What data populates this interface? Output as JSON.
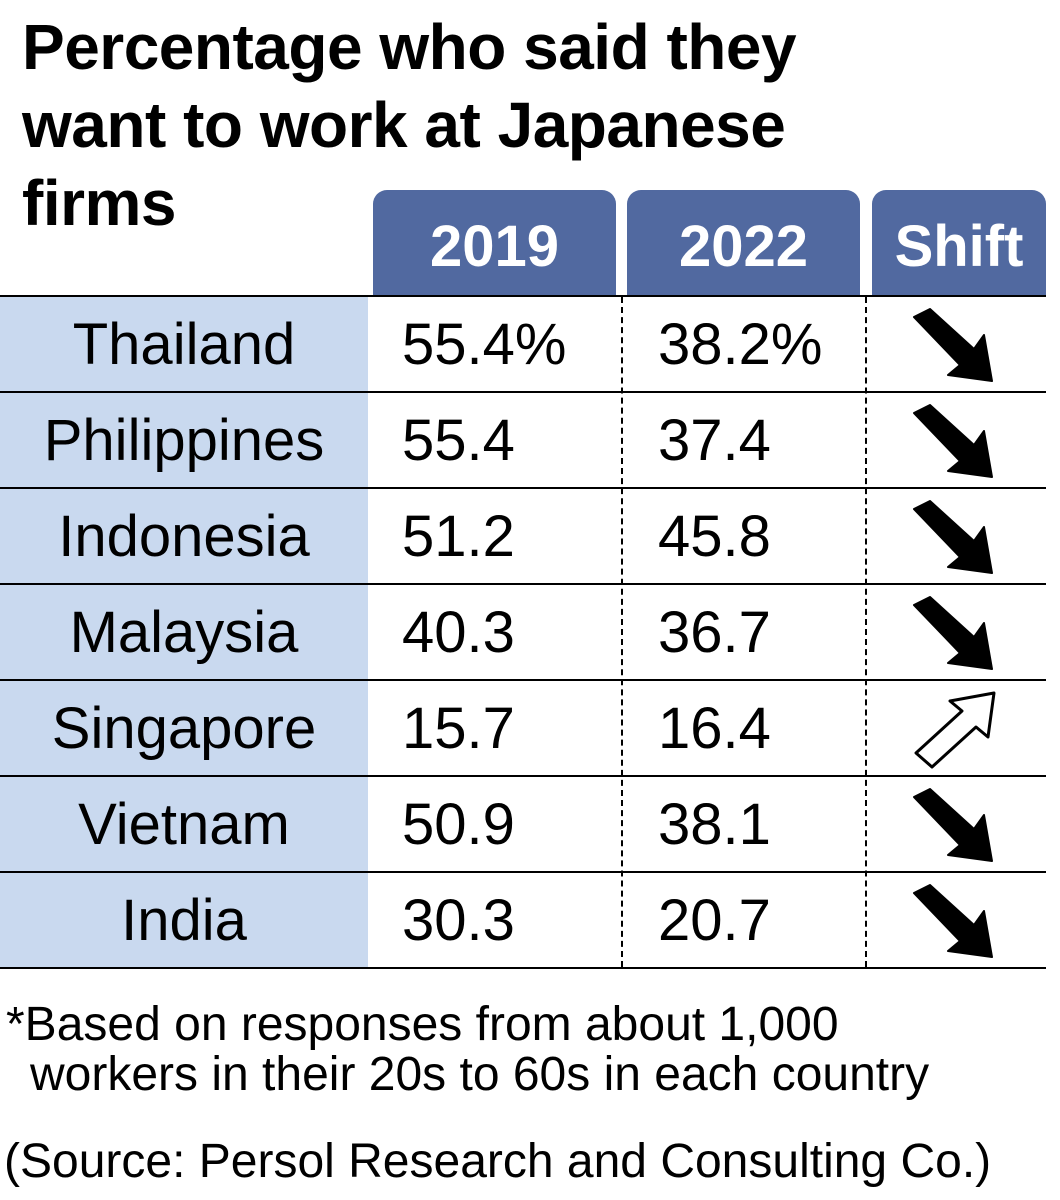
{
  "chart_data": {
    "type": "table",
    "title": "Percentage who said they want to work at Japanese firms",
    "title_lines": [
      "Percentage who said they",
      "want to work at Japanese",
      "firms"
    ],
    "columns": [
      "2019",
      "2022",
      "Shift"
    ],
    "rows": [
      {
        "country": "Thailand",
        "v2019": "55.4%",
        "v2022": "38.2%",
        "shift": "down"
      },
      {
        "country": "Philippines",
        "v2019": "55.4",
        "v2022": "37.4",
        "shift": "down"
      },
      {
        "country": "Indonesia",
        "v2019": "51.2",
        "v2022": "45.8",
        "shift": "down"
      },
      {
        "country": "Malaysia",
        "v2019": "40.3",
        "v2022": "36.7",
        "shift": "down"
      },
      {
        "country": "Singapore",
        "v2019": "15.7",
        "v2022": "16.4",
        "shift": "up"
      },
      {
        "country": "Vietnam",
        "v2019": "50.9",
        "v2022": "38.1",
        "shift": "down"
      },
      {
        "country": "India",
        "v2019": "30.3",
        "v2022": "20.7",
        "shift": "down"
      }
    ],
    "footnote_lines": [
      "*Based on responses from about 1,000",
      "workers in their 20s to 60s in each country"
    ],
    "source": "(Source: Persol Research and Consulting Co.)"
  },
  "colors": {
    "header_bg": "#5169a0",
    "country_bg": "#c9d9ef",
    "text": "#000000"
  },
  "icons": {
    "down": "arrow-down-right-icon",
    "up": "arrow-up-right-icon"
  }
}
